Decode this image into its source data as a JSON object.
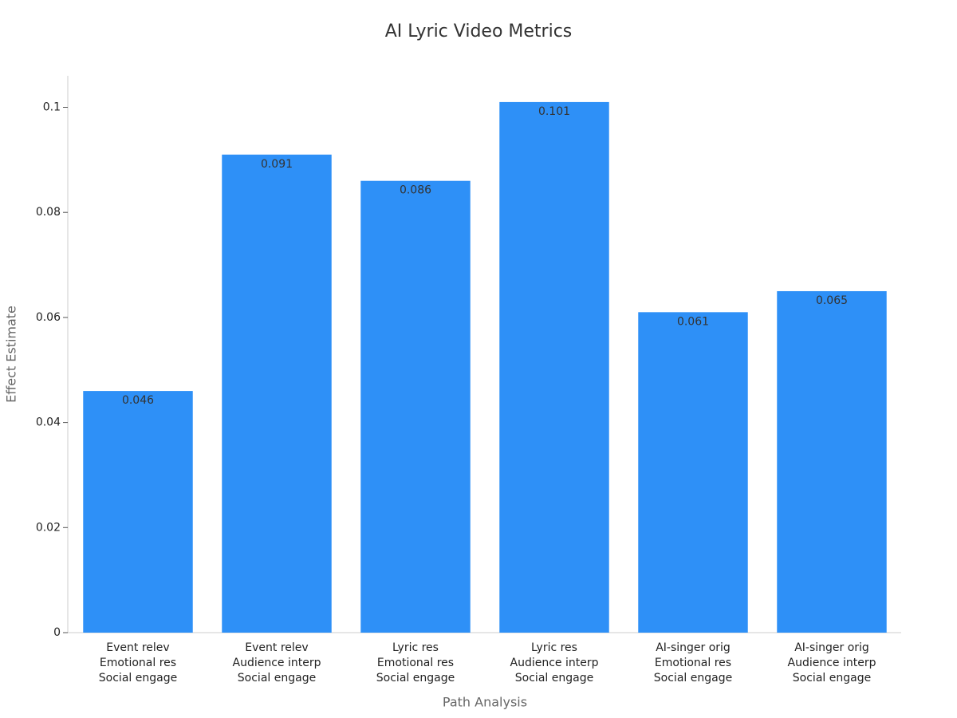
{
  "chart_data": {
    "type": "bar",
    "title": "AI Lyric Video Metrics",
    "x_label": "Path Analysis",
    "y_label": "Effect Estimate",
    "categories": [
      [
        "Event relev",
        "Emotional res",
        "Social engage"
      ],
      [
        "Event relev",
        "Audience interp",
        "Social engage"
      ],
      [
        "Lyric res",
        "Emotional res",
        "Social engage"
      ],
      [
        "Lyric res",
        "Audience interp",
        "Social engage"
      ],
      [
        "AI-singer orig",
        "Emotional res",
        "Social engage"
      ],
      [
        "AI-singer orig",
        "Audience interp",
        "Social engage"
      ]
    ],
    "values": [
      0.046,
      0.091,
      0.086,
      0.101,
      0.061,
      0.065
    ],
    "color": "#2e90f7",
    "ylim": [
      0,
      0.106
    ],
    "yticks": [
      0,
      0.02,
      0.04,
      0.06,
      0.08,
      0.1
    ],
    "grid": false
  }
}
